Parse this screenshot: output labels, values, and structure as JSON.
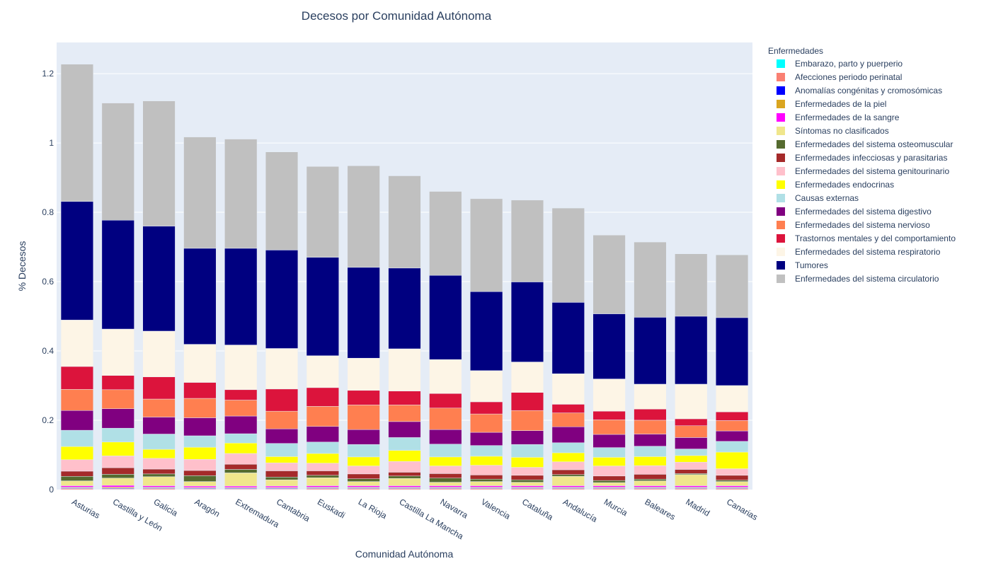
{
  "chart_data": {
    "type": "bar",
    "stacked": true,
    "title": "Decesos por Comunidad Autónoma",
    "xlabel": "Comunidad Autónoma",
    "ylabel": "% Decesos",
    "ylim": [
      0,
      1.29
    ],
    "yticks": [
      "0",
      "0.2",
      "0.4",
      "0.6",
      "0.8",
      "1",
      "1.2"
    ],
    "grid": true,
    "legend_title": "Enfermedades",
    "legend_position": "right",
    "categories": [
      "Asturias",
      "Castilla y León",
      "Galicia",
      "Aragón",
      "Extremadura",
      "Cantabria",
      "Euskadi",
      "La Rioja",
      "Castilla La Mancha",
      "Navarra",
      "Valencia",
      "Cataluña",
      "Andalucía",
      "Murcia",
      "Baleares",
      "Madrid",
      "Canarias"
    ],
    "series": [
      {
        "name": "Embarazo, parto y puerperio",
        "color": "#00ffff",
        "values": [
          0.0002,
          0.0002,
          0.0002,
          0.0002,
          0.0002,
          0.0002,
          0.0002,
          0.0002,
          0.0002,
          0.0002,
          0.0002,
          0.0002,
          0.0002,
          0.0002,
          0.0002,
          0.0002,
          0.0002
        ]
      },
      {
        "name": "Afecciones periodo perinatal",
        "color": "#fa8072",
        "values": [
          0.003,
          0.002,
          0.003,
          0.002,
          0.002,
          0.002,
          0.003,
          0.003,
          0.003,
          0.003,
          0.003,
          0.003,
          0.003,
          0.003,
          0.003,
          0.003,
          0.003
        ]
      },
      {
        "name": "Anomalías congénitas y cromosómicas",
        "color": "#0000ff",
        "values": [
          0.002,
          0.002,
          0.002,
          0.002,
          0.002,
          0.002,
          0.002,
          0.002,
          0.002,
          0.002,
          0.002,
          0.002,
          0.002,
          0.002,
          0.002,
          0.002,
          0.002
        ]
      },
      {
        "name": "Enfermedades de la piel",
        "color": "#daa520",
        "values": [
          0.002,
          0.003,
          0.002,
          0.002,
          0.002,
          0.002,
          0.002,
          0.002,
          0.002,
          0.002,
          0.002,
          0.002,
          0.002,
          0.002,
          0.002,
          0.002,
          0.002
        ]
      },
      {
        "name": "Enfermedades de la sangre",
        "color": "#ff00ff",
        "values": [
          0.004,
          0.005,
          0.004,
          0.004,
          0.004,
          0.004,
          0.004,
          0.004,
          0.004,
          0.004,
          0.004,
          0.004,
          0.004,
          0.004,
          0.004,
          0.004,
          0.004
        ]
      },
      {
        "name": "Síntomas no clasificados",
        "color": "#f0e68c",
        "values": [
          0.014,
          0.021,
          0.026,
          0.013,
          0.038,
          0.018,
          0.023,
          0.012,
          0.021,
          0.01,
          0.012,
          0.01,
          0.027,
          0.009,
          0.014,
          0.032,
          0.012
        ]
      },
      {
        "name": "Enfermedades del sistema osteomuscular",
        "color": "#556b2f",
        "values": [
          0.013,
          0.011,
          0.008,
          0.017,
          0.01,
          0.008,
          0.007,
          0.008,
          0.007,
          0.012,
          0.007,
          0.007,
          0.005,
          0.006,
          0.005,
          0.003,
          0.004
        ]
      },
      {
        "name": "Enfermedades infecciosas y parasitarias",
        "color": "#a52a2a",
        "values": [
          0.015,
          0.019,
          0.014,
          0.015,
          0.015,
          0.018,
          0.013,
          0.014,
          0.011,
          0.013,
          0.012,
          0.013,
          0.014,
          0.013,
          0.014,
          0.012,
          0.014
        ]
      },
      {
        "name": "Enfermedades del sistema genitourinario",
        "color": "#ffc0cb",
        "values": [
          0.033,
          0.034,
          0.031,
          0.032,
          0.031,
          0.023,
          0.022,
          0.023,
          0.031,
          0.022,
          0.028,
          0.023,
          0.023,
          0.029,
          0.025,
          0.021,
          0.019
        ]
      },
      {
        "name": "Enfermedades endocrinas",
        "color": "#ffff00",
        "values": [
          0.038,
          0.04,
          0.026,
          0.035,
          0.03,
          0.018,
          0.028,
          0.026,
          0.032,
          0.026,
          0.026,
          0.029,
          0.026,
          0.025,
          0.026,
          0.019,
          0.048
        ]
      },
      {
        "name": "Causas externas",
        "color": "#b0e0e6",
        "values": [
          0.047,
          0.04,
          0.044,
          0.033,
          0.027,
          0.038,
          0.033,
          0.036,
          0.037,
          0.037,
          0.031,
          0.037,
          0.029,
          0.028,
          0.03,
          0.019,
          0.031
        ]
      },
      {
        "name": "Enfermedades del sistema digestivo",
        "color": "#800080",
        "values": [
          0.057,
          0.056,
          0.049,
          0.052,
          0.051,
          0.042,
          0.045,
          0.043,
          0.046,
          0.042,
          0.038,
          0.04,
          0.046,
          0.038,
          0.035,
          0.033,
          0.03
        ]
      },
      {
        "name": "Enfermedades del sistema nervioso",
        "color": "#ff7f50",
        "values": [
          0.061,
          0.055,
          0.052,
          0.056,
          0.046,
          0.051,
          0.058,
          0.071,
          0.048,
          0.062,
          0.053,
          0.058,
          0.04,
          0.042,
          0.04,
          0.034,
          0.03
        ]
      },
      {
        "name": "Trastornos mentales y del comportamiento",
        "color": "#dc143c",
        "values": [
          0.066,
          0.041,
          0.064,
          0.046,
          0.03,
          0.064,
          0.054,
          0.042,
          0.04,
          0.042,
          0.035,
          0.052,
          0.025,
          0.025,
          0.032,
          0.02,
          0.025
        ]
      },
      {
        "name": "Enfermedades del sistema respiratorio",
        "color": "#fdf5e6",
        "values": [
          0.134,
          0.134,
          0.132,
          0.11,
          0.129,
          0.117,
          0.092,
          0.093,
          0.122,
          0.098,
          0.09,
          0.088,
          0.088,
          0.093,
          0.072,
          0.1,
          0.076
        ]
      },
      {
        "name": "Tumores",
        "color": "#000080",
        "values": [
          0.342,
          0.314,
          0.303,
          0.277,
          0.279,
          0.284,
          0.284,
          0.262,
          0.233,
          0.243,
          0.228,
          0.231,
          0.206,
          0.188,
          0.193,
          0.196,
          0.196
        ]
      },
      {
        "name": "Enfermedades del sistema circulatorio",
        "color": "#c0c0c0",
        "values": [
          0.396,
          0.338,
          0.361,
          0.321,
          0.315,
          0.283,
          0.262,
          0.293,
          0.266,
          0.242,
          0.268,
          0.236,
          0.272,
          0.227,
          0.217,
          0.18,
          0.181
        ]
      }
    ]
  }
}
